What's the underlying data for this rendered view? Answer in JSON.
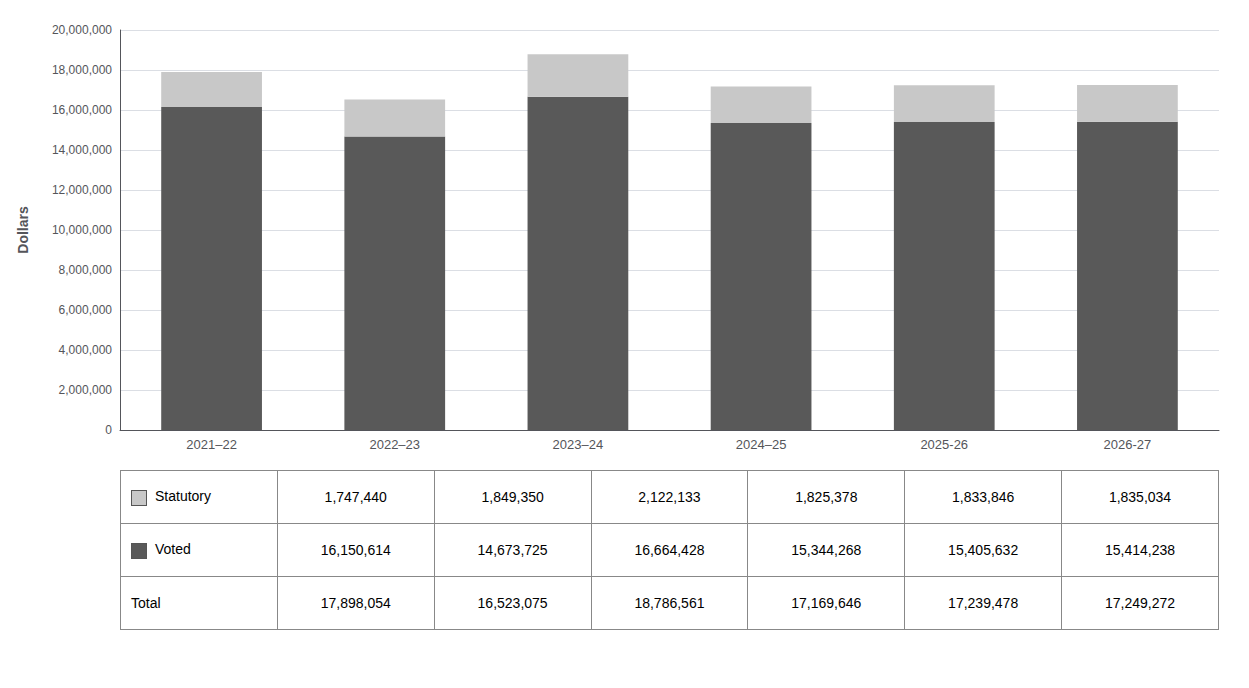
{
  "chart_data": {
    "type": "bar",
    "stacked": true,
    "categories": [
      "2021–22",
      "2022–23",
      "2023–24",
      "2024–25",
      "2025-26",
      "2026-27"
    ],
    "series": [
      {
        "name": "Voted",
        "color": "#595959",
        "values": [
          16150614,
          14673725,
          16664428,
          15344268,
          15405632,
          15414238
        ],
        "value_labels": [
          "16,150,614",
          "14,673,725",
          "16,664,428",
          "15,344,268",
          "15,405,632",
          "15,414,238"
        ]
      },
      {
        "name": "Statutory",
        "color": "#c8c8c8",
        "values": [
          1747440,
          1849350,
          2122133,
          1825378,
          1833846,
          1835034
        ],
        "value_labels": [
          "1,747,440",
          "1,849,350",
          "2,122,133",
          "1,825,378",
          "1,833,846",
          "1,835,034"
        ]
      }
    ],
    "totals": {
      "name": "Total",
      "values": [
        17898054,
        16523075,
        18786561,
        17169646,
        17239478,
        17249272
      ],
      "value_labels": [
        "17,898,054",
        "16,523,075",
        "18,786,561",
        "17,169,646",
        "17,239,478",
        "17,249,272"
      ]
    },
    "ylabel": "Dollars",
    "ylim": [
      0,
      20000000
    ],
    "yticks": [
      0,
      {
        "value": 2000000,
        "label": "2,000,000"
      },
      {
        "value": 4000000,
        "label": "4,000,000"
      },
      {
        "value": 6000000,
        "label": "6,000,000"
      },
      {
        "value": 8000000,
        "label": "8,000,000"
      },
      {
        "value": 10000000,
        "label": "10,000,000"
      },
      {
        "value": 12000000,
        "label": "12,000,000"
      },
      {
        "value": 14000000,
        "label": "14,000,000"
      },
      {
        "value": 16000000,
        "label": "16,000,000"
      },
      {
        "value": 18000000,
        "label": "18,000,000"
      },
      {
        "value": 20000000,
        "label": "20,000,000"
      }
    ],
    "grid": true
  }
}
